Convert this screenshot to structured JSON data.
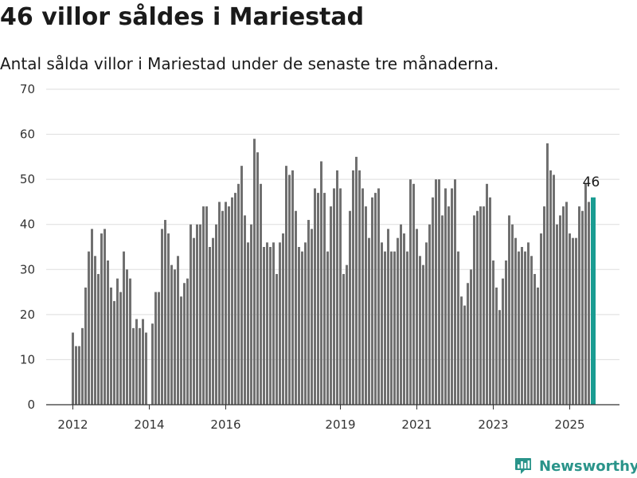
{
  "header": {
    "title": "46 villor såldes i Mariestad",
    "subtitle": "Antal sålda villor i Mariestad under de senaste tre månaderna."
  },
  "brand": {
    "name": "Newsworthy",
    "icon": "bar-chart-tag-icon",
    "color": "#2a948a"
  },
  "colors": {
    "bar": "#707070",
    "highlight": "#1a9c92",
    "grid": "#dddddd",
    "axis": "#333333"
  },
  "chart_data": {
    "type": "bar",
    "title": "46 villor såldes i Mariestad",
    "subtitle": "Antal sålda villor i Mariestad under de senaste tre månaderna.",
    "xlabel": "",
    "ylabel": "",
    "ylim": [
      0,
      70
    ],
    "yticks": [
      0,
      10,
      20,
      30,
      40,
      50,
      60,
      70
    ],
    "grid": true,
    "legend": "none",
    "x_start": "2012-01",
    "x_end": "2025-08",
    "xtick_labels": [
      {
        "label": "2012",
        "x": "2012-01"
      },
      {
        "label": "2014",
        "x": "2014-01"
      },
      {
        "label": "2016",
        "x": "2016-01"
      },
      {
        "label": "2019",
        "x": "2019-01"
      },
      {
        "label": "2021",
        "x": "2021-01"
      },
      {
        "label": "2023",
        "x": "2023-01"
      },
      {
        "label": "2025",
        "x": "2025-01"
      }
    ],
    "annotation": {
      "label": "46",
      "x": "2025-08",
      "value": 46
    },
    "highlight_last": true,
    "series": [
      {
        "x": [
          "2012-01",
          "2012-02",
          "2012-03",
          "2012-04",
          "2012-05",
          "2012-06",
          "2012-07",
          "2012-08",
          "2012-09",
          "2012-10",
          "2012-11",
          "2012-12",
          "2013-01",
          "2013-02",
          "2013-03",
          "2013-04",
          "2013-05",
          "2013-06",
          "2013-07",
          "2013-08",
          "2013-09",
          "2013-10",
          "2013-11",
          "2013-12",
          "2014-01",
          "2014-02",
          "2014-03",
          "2014-04",
          "2014-05",
          "2014-06",
          "2014-07",
          "2014-08",
          "2014-09",
          "2014-10",
          "2014-11",
          "2014-12",
          "2015-01",
          "2015-02",
          "2015-03",
          "2015-04",
          "2015-05",
          "2015-06",
          "2015-07",
          "2015-08",
          "2015-09",
          "2015-10",
          "2015-11",
          "2015-12",
          "2016-01",
          "2016-02",
          "2016-03",
          "2016-04",
          "2016-05",
          "2016-06",
          "2016-07",
          "2016-08",
          "2016-09",
          "2016-10",
          "2016-11",
          "2016-12",
          "2017-01",
          "2017-02",
          "2017-03",
          "2017-04",
          "2017-05",
          "2017-06",
          "2017-07",
          "2017-08",
          "2017-09",
          "2017-10",
          "2017-11",
          "2017-12",
          "2018-01",
          "2018-02",
          "2018-03",
          "2018-04",
          "2018-05",
          "2018-06",
          "2018-07",
          "2018-08",
          "2018-09",
          "2018-10",
          "2018-11",
          "2018-12",
          "2019-01",
          "2019-02",
          "2019-03",
          "2019-04",
          "2019-05",
          "2019-06",
          "2019-07",
          "2019-08",
          "2019-09",
          "2019-10",
          "2019-11",
          "2019-12",
          "2020-01",
          "2020-02",
          "2020-03",
          "2020-04",
          "2020-05",
          "2020-06",
          "2020-07",
          "2020-08",
          "2020-09",
          "2020-10",
          "2020-11",
          "2020-12",
          "2021-01",
          "2021-02",
          "2021-03",
          "2021-04",
          "2021-05",
          "2021-06",
          "2021-07",
          "2021-08",
          "2021-09",
          "2021-10",
          "2021-11",
          "2021-12",
          "2022-01",
          "2022-02",
          "2022-03",
          "2022-04",
          "2022-05",
          "2022-06",
          "2022-07",
          "2022-08",
          "2022-09",
          "2022-10",
          "2022-11",
          "2022-12",
          "2023-01",
          "2023-02",
          "2023-03",
          "2023-04",
          "2023-05",
          "2023-06",
          "2023-07",
          "2023-08",
          "2023-09",
          "2023-10",
          "2023-11",
          "2023-12",
          "2024-01",
          "2024-02",
          "2024-03",
          "2024-04",
          "2024-05",
          "2024-06",
          "2024-07",
          "2024-08",
          "2024-09",
          "2024-10",
          "2024-11",
          "2024-12",
          "2025-01",
          "2025-02",
          "2025-03",
          "2025-04",
          "2025-05",
          "2025-06",
          "2025-07",
          "2025-08"
        ],
        "values": [
          16,
          13,
          13,
          17,
          26,
          34,
          39,
          33,
          29,
          38,
          39,
          32,
          26,
          23,
          28,
          25,
          34,
          30,
          28,
          17,
          19,
          17,
          19,
          16,
          0,
          18,
          25,
          25,
          39,
          41,
          38,
          31,
          30,
          33,
          24,
          27,
          28,
          40,
          37,
          40,
          40,
          44,
          44,
          35,
          37,
          40,
          45,
          43,
          45,
          44,
          46,
          47,
          49,
          53,
          42,
          36,
          40,
          59,
          56,
          49,
          35,
          36,
          35,
          36,
          29,
          36,
          38,
          53,
          51,
          52,
          43,
          35,
          34,
          36,
          41,
          39,
          48,
          47,
          54,
          47,
          34,
          44,
          48,
          52,
          48,
          29,
          31,
          43,
          52,
          55,
          52,
          48,
          44,
          37,
          46,
          47,
          48,
          36,
          34,
          39,
          34,
          34,
          37,
          40,
          38,
          34,
          50,
          49,
          39,
          33,
          31,
          36,
          40,
          46,
          50,
          50,
          42,
          48,
          44,
          48,
          50,
          34,
          24,
          22,
          27,
          30,
          42,
          43,
          44,
          44,
          49,
          46,
          32,
          26,
          21,
          28,
          32,
          42,
          40,
          37,
          34,
          35,
          34,
          36,
          33,
          29,
          26,
          38,
          44,
          58,
          52,
          51,
          40,
          42,
          44,
          45,
          38,
          37,
          37,
          44,
          43,
          49,
          45,
          46
        ]
      }
    ]
  }
}
